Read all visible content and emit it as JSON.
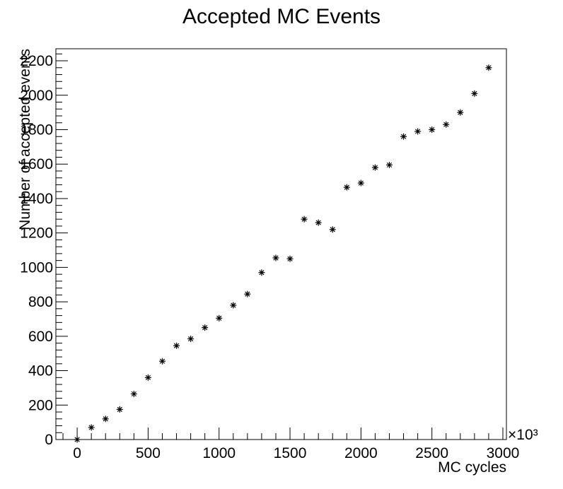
{
  "chart_data": {
    "type": "scatter",
    "title": "Accepted MC Events",
    "xlabel": "MC cycles",
    "ylabel": "Number of accepted events",
    "x_multiplier_label": "×10³",
    "xlim": [
      -150,
      3025
    ],
    "ylim": [
      0,
      2270
    ],
    "x_ticks": [
      0,
      500,
      1000,
      1500,
      2000,
      2500,
      3000
    ],
    "y_ticks": [
      0,
      200,
      400,
      600,
      800,
      1000,
      1200,
      1400,
      1600,
      1800,
      2000,
      2200
    ],
    "grid": false,
    "marker": "*",
    "colors": {
      "axis": "#000000",
      "marker": "#000000",
      "background": "#ffffff"
    },
    "series": [
      {
        "x": [
          0,
          100,
          200,
          300,
          400,
          500,
          600,
          700,
          800,
          900,
          1000,
          1100,
          1200,
          1300,
          1400,
          1500,
          1600,
          1700,
          1800,
          1900,
          2000,
          2100,
          2200,
          2300,
          2400,
          2500,
          2600,
          2700,
          2800,
          2900
        ],
        "y": [
          0,
          70,
          120,
          175,
          265,
          360,
          455,
          545,
          585,
          650,
          705,
          780,
          845,
          970,
          1055,
          1050,
          1280,
          1260,
          1220,
          1465,
          1490,
          1580,
          1595,
          1760,
          1790,
          1800,
          1830,
          1900,
          2010,
          2160
        ]
      }
    ]
  }
}
